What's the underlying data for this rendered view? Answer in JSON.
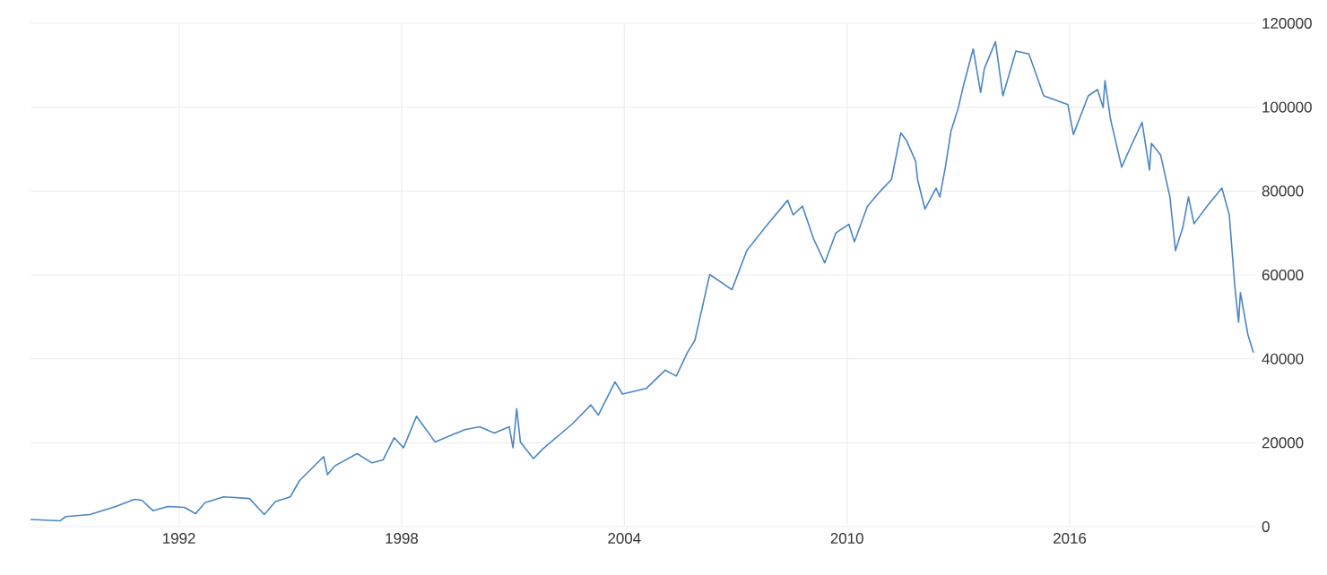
{
  "chart_data": {
    "type": "line",
    "series": [
      {
        "color": "#4a85c4",
        "x": [
          1988.0,
          1988.8,
          1988.95,
          1989.6,
          1990.3,
          1990.8,
          1991.0,
          1991.3,
          1991.7,
          1992.15,
          1992.45,
          1992.7,
          1993.2,
          1993.9,
          1994.3,
          1994.6,
          1995.0,
          1995.25,
          1995.9,
          1996.0,
          1996.2,
          1996.8,
          1997.2,
          1997.5,
          1997.8,
          1998.05,
          1998.4,
          1998.9,
          1999.7,
          2000.1,
          2000.5,
          2000.9,
          2001.0,
          2001.1,
          2001.2,
          2001.55,
          2001.8,
          2002.6,
          2003.1,
          2003.3,
          2003.75,
          2003.95,
          2004.6,
          2005.1,
          2005.4,
          2005.7,
          2005.9,
          2006.3,
          2006.9,
          2007.3,
          2007.8,
          2008.4,
          2008.55,
          2008.8,
          2009.1,
          2009.4,
          2009.7,
          2010.05,
          2010.2,
          2010.55,
          2010.9,
          2011.2,
          2011.45,
          2011.6,
          2011.85,
          2011.9,
          2012.1,
          2012.4,
          2012.5,
          2012.65,
          2012.8,
          2013.0,
          2013.15,
          2013.4,
          2013.6,
          2013.7,
          2014.0,
          2014.2,
          2014.55,
          2014.9,
          2015.1,
          2015.3,
          2015.95,
          2016.1,
          2016.5,
          2016.75,
          2016.9,
          2016.95,
          2017.1,
          2017.25,
          2017.4,
          2017.65,
          2017.95,
          2018.15,
          2018.2,
          2018.45,
          2018.7,
          2018.85,
          2019.05,
          2019.2,
          2019.35,
          2019.7,
          2020.1,
          2020.3,
          2020.45,
          2020.55,
          2020.6,
          2020.8,
          2020.95
        ],
        "values": [
          1700,
          1400,
          2400,
          2900,
          4800,
          6500,
          6300,
          3800,
          4800,
          4600,
          3100,
          5700,
          7100,
          6700,
          2900,
          6000,
          7100,
          11000,
          16700,
          12400,
          14500,
          17400,
          15200,
          15900,
          21200,
          18800,
          26300,
          20200,
          23100,
          23800,
          22300,
          23800,
          18800,
          28100,
          20200,
          16200,
          18500,
          24500,
          29000,
          26600,
          34500,
          31600,
          33000,
          37300,
          35900,
          41500,
          44400,
          60100,
          56500,
          65800,
          71400,
          77800,
          74300,
          76400,
          68600,
          62900,
          70000,
          72100,
          67900,
          76400,
          80000,
          82800,
          93900,
          92100,
          87100,
          82800,
          75700,
          80700,
          78600,
          85700,
          94200,
          99900,
          105600,
          113900,
          103500,
          109200,
          115600,
          102700,
          113400,
          112700,
          107700,
          102700,
          100600,
          93500,
          102700,
          104200,
          99900,
          106300,
          97100,
          91400,
          85700,
          90700,
          96400,
          85000,
          91400,
          88600,
          78600,
          65800,
          71400,
          78600,
          72200,
          76400,
          80700,
          74300,
          57200,
          48700,
          55800,
          45800,
          41500
        ]
      }
    ],
    "xlim": [
      1988,
      2021
    ],
    "xticks": [
      1992,
      1998,
      2004,
      2010,
      2016
    ],
    "ylim": [
      0,
      120000
    ],
    "yticks": [
      0,
      20000,
      40000,
      60000,
      80000,
      100000,
      120000
    ],
    "grid": true
  }
}
